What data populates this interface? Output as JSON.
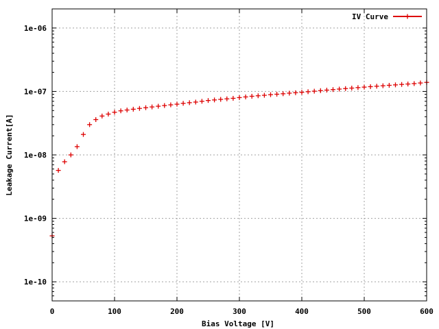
{
  "chart_data": {
    "type": "scatter",
    "xlabel": "Bias Voltage [V]",
    "ylabel": "Leakage Current[A]",
    "xlim": [
      0,
      600
    ],
    "ylim": [
      5e-11,
      2e-06
    ],
    "y_scale": "log",
    "grid": true,
    "legend_position": "top-right",
    "x_ticks": [
      0,
      100,
      200,
      300,
      400,
      500,
      600
    ],
    "x_tick_labels": [
      "0",
      "100",
      "200",
      "300",
      "400",
      "500",
      "600"
    ],
    "y_ticks": [
      1e-10,
      1e-09,
      1e-08,
      1e-07,
      1e-06
    ],
    "y_tick_labels": [
      "1e-10",
      "1e-09",
      "1e-08",
      "1e-07",
      "1e-06"
    ],
    "series": [
      {
        "name": "IV Curve",
        "color": "#dd0000",
        "marker": "plus",
        "x": [
          0,
          10,
          20,
          30,
          40,
          50,
          60,
          70,
          80,
          90,
          100,
          110,
          120,
          130,
          140,
          150,
          160,
          170,
          180,
          190,
          200,
          210,
          220,
          230,
          240,
          250,
          260,
          270,
          280,
          290,
          300,
          310,
          320,
          330,
          340,
          350,
          360,
          370,
          380,
          390,
          400,
          410,
          420,
          430,
          440,
          450,
          460,
          470,
          480,
          490,
          500,
          510,
          520,
          530,
          540,
          550,
          560,
          570,
          580,
          590,
          600
        ],
        "y": [
          5.3e-10,
          5.7e-09,
          7.8e-09,
          1e-08,
          1.35e-08,
          2.1e-08,
          3e-08,
          3.6e-08,
          4.1e-08,
          4.4e-08,
          4.7e-08,
          4.95e-08,
          5.1e-08,
          5.25e-08,
          5.4e-08,
          5.55e-08,
          5.7e-08,
          5.85e-08,
          6e-08,
          6.15e-08,
          6.3e-08,
          6.5e-08,
          6.65e-08,
          6.8e-08,
          7e-08,
          7.2e-08,
          7.35e-08,
          7.5e-08,
          7.65e-08,
          7.8e-08,
          8e-08,
          8.2e-08,
          8.4e-08,
          8.55e-08,
          8.7e-08,
          8.9e-08,
          9.05e-08,
          9.2e-08,
          9.4e-08,
          9.55e-08,
          9.7e-08,
          9.9e-08,
          1.01e-07,
          1.03e-07,
          1.05e-07,
          1.07e-07,
          1.09e-07,
          1.11e-07,
          1.13e-07,
          1.15e-07,
          1.17e-07,
          1.19e-07,
          1.21e-07,
          1.23e-07,
          1.25e-07,
          1.27e-07,
          1.29e-07,
          1.31e-07,
          1.33e-07,
          1.36e-07,
          1.39e-07
        ]
      }
    ]
  }
}
